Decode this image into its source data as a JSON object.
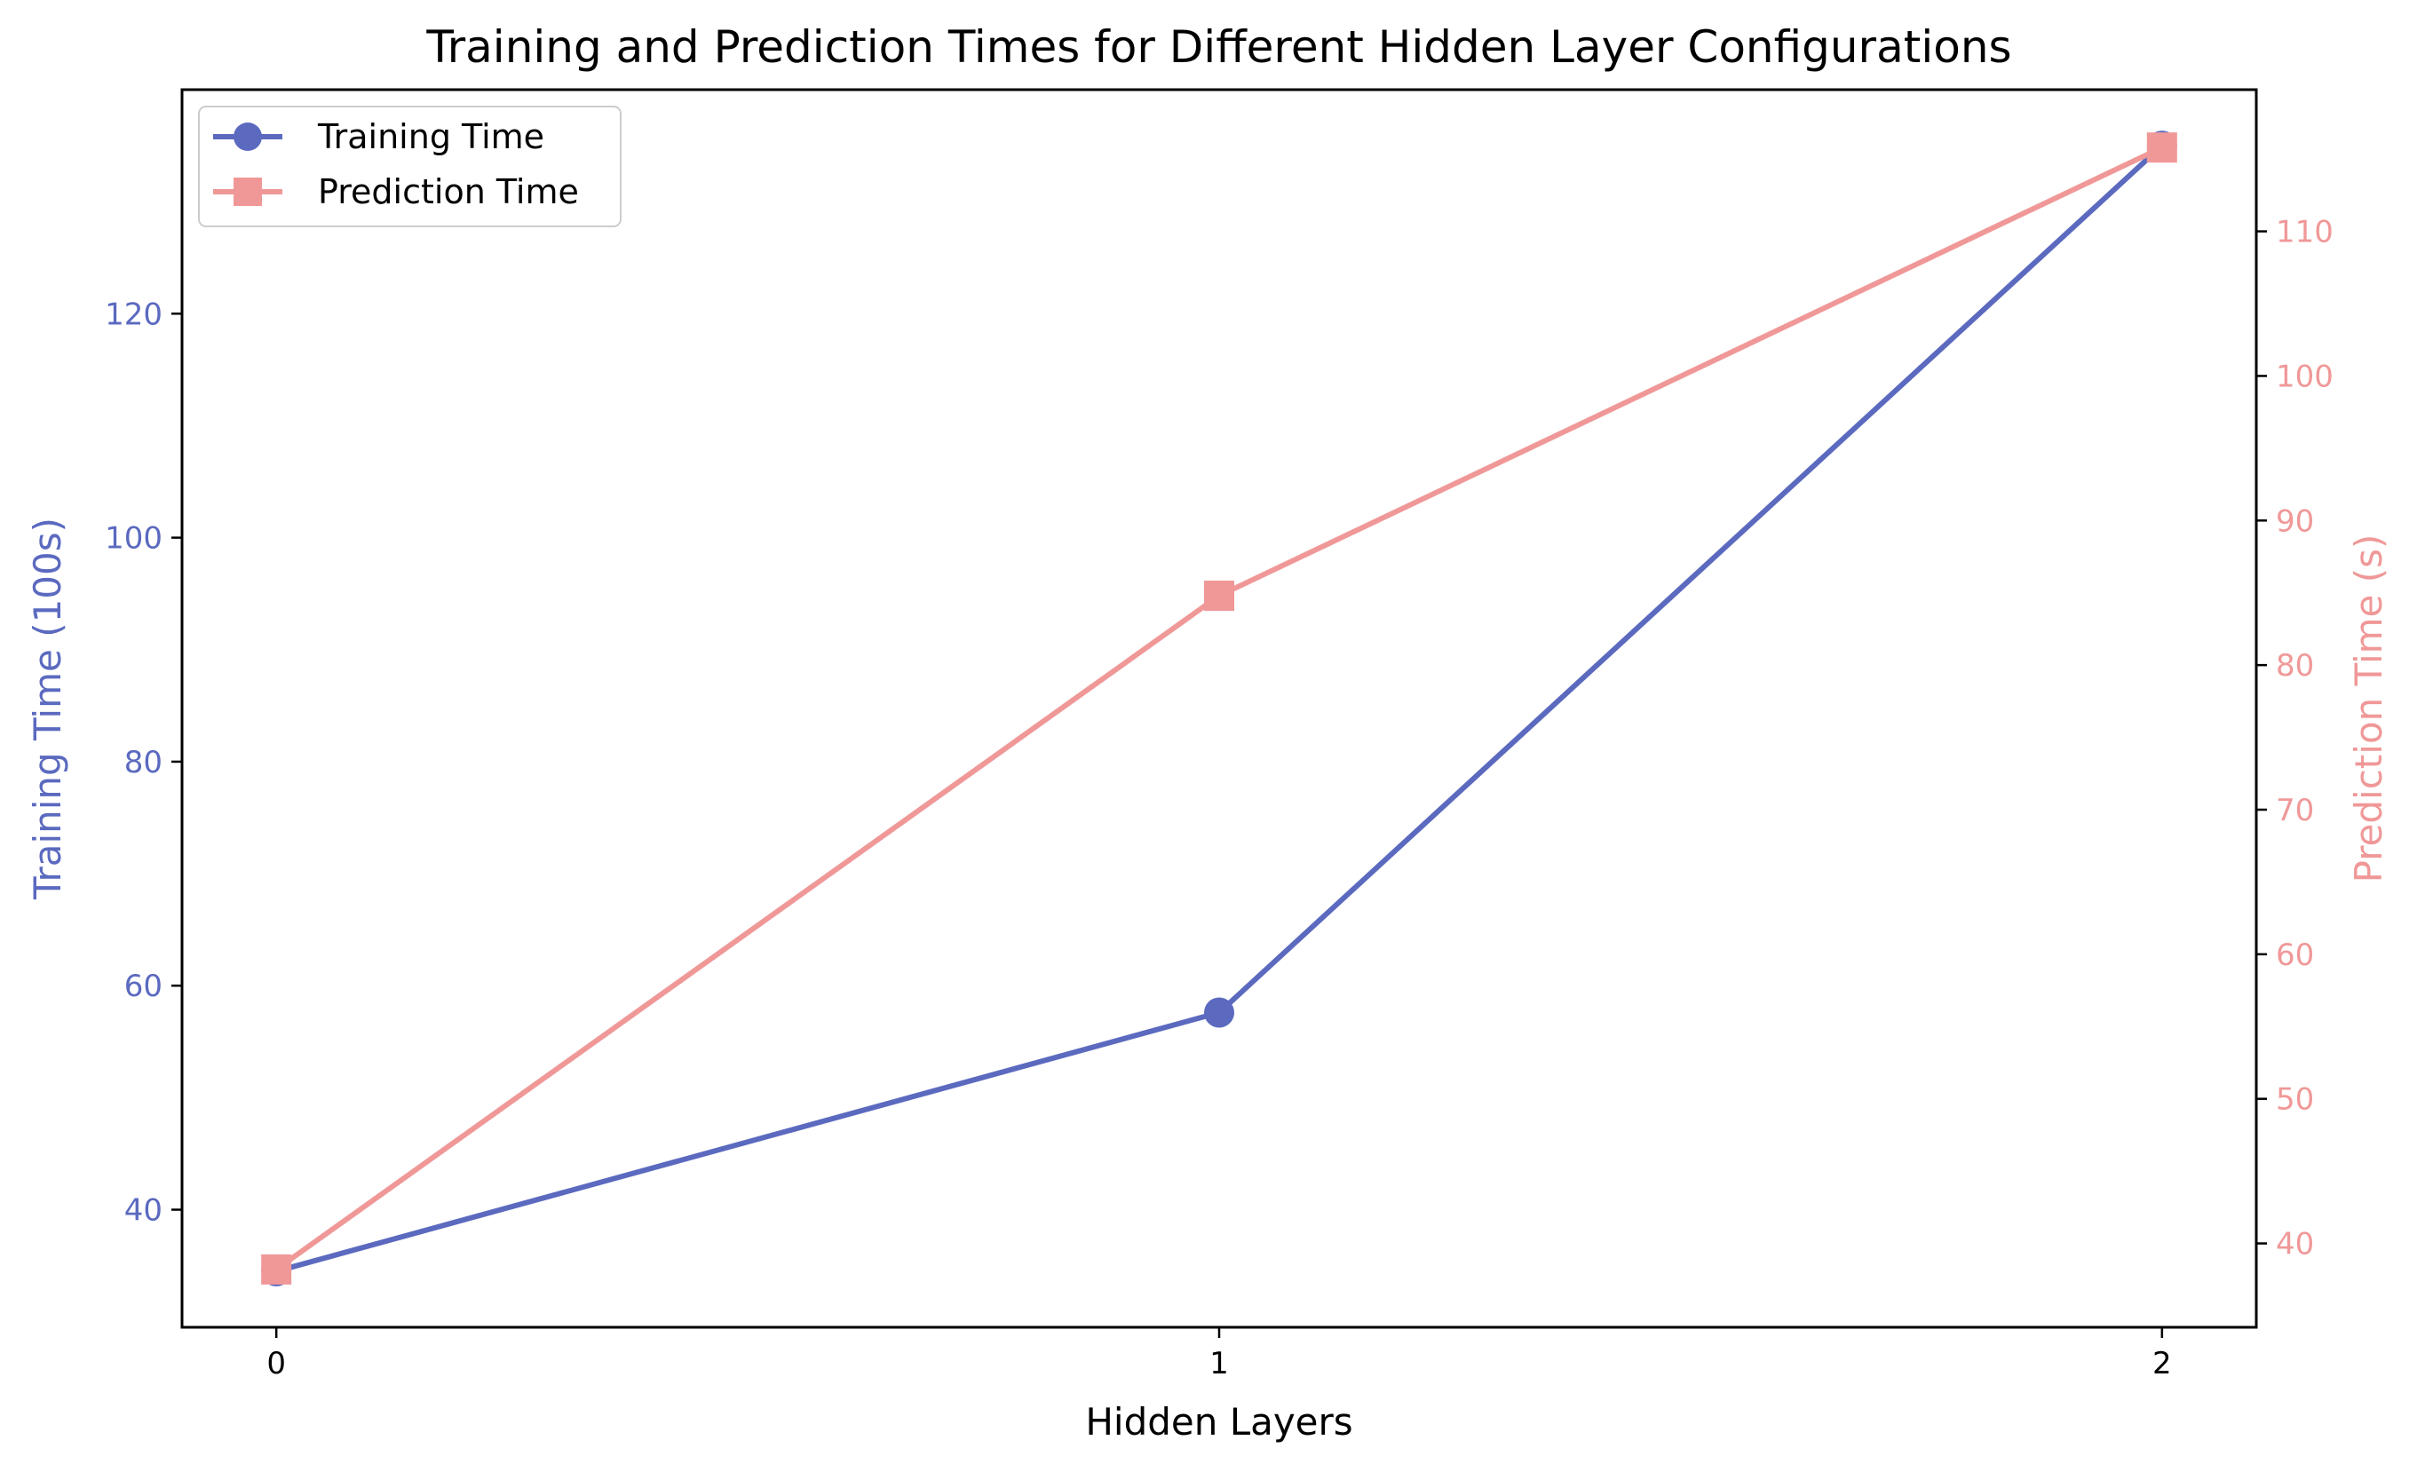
{
  "chart_data": {
    "type": "line",
    "title": "Training and Prediction Times for Different Hidden Layer Configurations",
    "xlabel": "Hidden Layers",
    "y_left_label": "Training Time (100s)",
    "y_right_label": "Prediction Time (s)",
    "x": [
      0,
      1,
      2
    ],
    "x_ticks": [
      "0",
      "1",
      "2"
    ],
    "x_range": [
      -0.1,
      2.1
    ],
    "y_left_range": [
      29.5,
      140
    ],
    "y_left_ticks": [
      "40",
      "60",
      "80",
      "100",
      "120"
    ],
    "y_right_range": [
      34.2,
      119.8
    ],
    "y_right_ticks": [
      "40",
      "50",
      "60",
      "70",
      "80",
      "90",
      "100",
      "110"
    ],
    "grid": false,
    "legend_position": "top-left",
    "series": [
      {
        "name": "Training Time",
        "axis": "left",
        "marker": "circle",
        "color": "#5b6abf",
        "values": [
          34.5,
          57.6,
          135.0
        ]
      },
      {
        "name": "Prediction Time",
        "axis": "right",
        "marker": "square",
        "color": "#f09898",
        "values": [
          38.2,
          84.8,
          115.8
        ]
      }
    ]
  }
}
